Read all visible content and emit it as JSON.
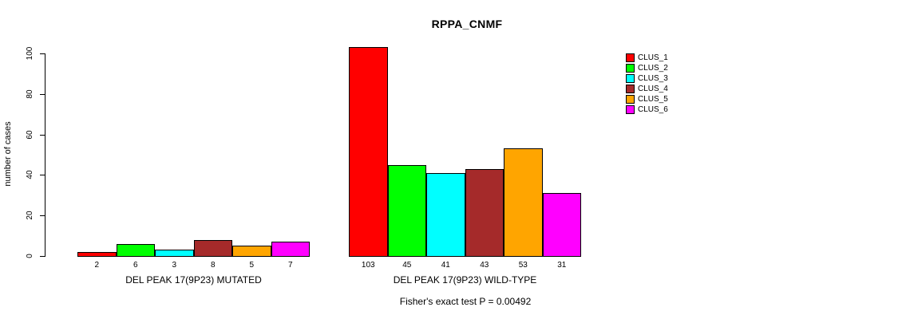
{
  "chart_data": {
    "type": "bar",
    "title": "RPPA_CNMF",
    "ylabel": "number of cases",
    "ylim": [
      0,
      100
    ],
    "yticks": [
      0,
      20,
      40,
      60,
      80,
      100
    ],
    "grid": false,
    "legend_position": "right",
    "legend": [
      "CLUS_1",
      "CLUS_2",
      "CLUS_3",
      "CLUS_4",
      "CLUS_5",
      "CLUS_6"
    ],
    "series_colors": {
      "CLUS_1": "#FF0000",
      "CLUS_2": "#00FF00",
      "CLUS_3": "#00FFFF",
      "CLUS_4": "#A52A2A",
      "CLUS_5": "#FFA500",
      "CLUS_6": "#FF00FF"
    },
    "groups": [
      {
        "label": "DEL PEAK 17(9P23) MUTATED",
        "values": [
          2,
          6,
          3,
          8,
          5,
          7
        ],
        "value_labels": [
          "2",
          "6",
          "3",
          "8",
          "5",
          "7"
        ]
      },
      {
        "label": "DEL PEAK 17(9P23) WILD-TYPE",
        "values": [
          103,
          45,
          41,
          43,
          53,
          31
        ],
        "value_labels": [
          "103",
          "45",
          "41",
          "43",
          "53",
          "31"
        ]
      }
    ],
    "annotation": "Fisher's exact test P = 0.00492"
  }
}
